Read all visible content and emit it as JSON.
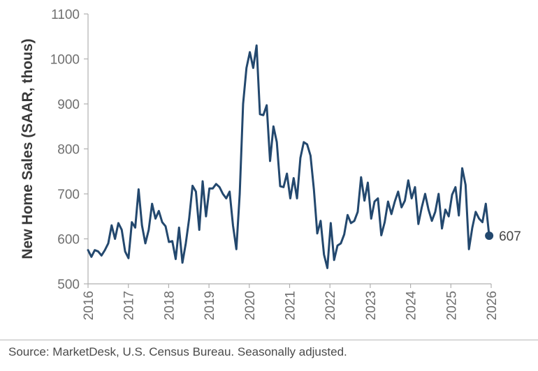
{
  "chart_data": {
    "type": "line",
    "title": "",
    "xlabel": "",
    "ylabel": "New Home Sales (SAAR, thous)",
    "ylim": [
      500,
      1100
    ],
    "yticks": [
      500,
      600,
      700,
      800,
      900,
      1000,
      1100
    ],
    "xlim": [
      2016,
      2026
    ],
    "xticks": [
      "2016",
      "2017",
      "2018",
      "2019",
      "2020",
      "2021",
      "2022",
      "2023",
      "2024",
      "2025",
      "2026"
    ],
    "grid": false,
    "legend": "none",
    "line_color": "#23486e",
    "series": [
      {
        "values": [
          575,
          560,
          575,
          572,
          563,
          575,
          590,
          630,
          600,
          635,
          620,
          572,
          557,
          637,
          625,
          710,
          630,
          590,
          620,
          678,
          645,
          662,
          637,
          628,
          593,
          595,
          555,
          625,
          547,
          590,
          645,
          718,
          705,
          620,
          728,
          650,
          712,
          712,
          722,
          715,
          700,
          690,
          705,
          630,
          577,
          700,
          900,
          980,
          1015,
          980,
          1030,
          877,
          875,
          897,
          773,
          850,
          815,
          717,
          715,
          745,
          690,
          735,
          690,
          780,
          815,
          810,
          785,
          710,
          612,
          640,
          565,
          535,
          635,
          553,
          585,
          590,
          610,
          653,
          635,
          640,
          660,
          737,
          685,
          725,
          645,
          683,
          690,
          608,
          637,
          683,
          655,
          683,
          705,
          670,
          685,
          730,
          690,
          715,
          633,
          670,
          700,
          665,
          640,
          660,
          700,
          623,
          665,
          650,
          698,
          715,
          652,
          757,
          720,
          577,
          625,
          660,
          645,
          637,
          678,
          607
        ]
      }
    ],
    "end_value": "607"
  },
  "source": "Source: MarketDesk, U.S. Census Bureau. Seasonally adjusted."
}
